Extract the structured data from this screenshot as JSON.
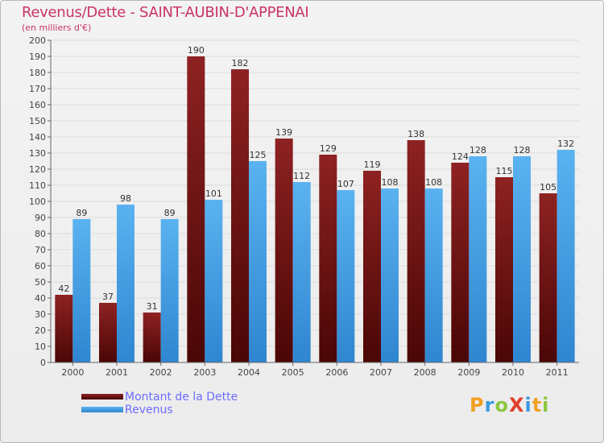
{
  "chart_data": {
    "type": "bar",
    "title": "Revenus/Dette - SAINT-AUBIN-D'APPENAI",
    "subtitle": "(en milliers d'€)",
    "categories": [
      "2000",
      "2001",
      "2002",
      "2003",
      "2004",
      "2005",
      "2006",
      "2007",
      "2008",
      "2009",
      "2010",
      "2011"
    ],
    "series": [
      {
        "name": "Montant de la Dette",
        "color": "#7a1a1a",
        "values": [
          42,
          37,
          31,
          190,
          182,
          139,
          129,
          119,
          138,
          124,
          115,
          105
        ]
      },
      {
        "name": "Revenus",
        "color": "#3a9ae0",
        "values": [
          89,
          98,
          89,
          101,
          125,
          112,
          107,
          108,
          108,
          128,
          128,
          132
        ]
      }
    ],
    "ylim": [
      0,
      200
    ],
    "ytick_step": 10,
    "grid": true,
    "legend_position": "bottom-left"
  },
  "logo": {
    "text": "ProXiti",
    "letters": [
      "P",
      "r",
      "o",
      "X",
      "i",
      "t",
      "i"
    ],
    "colors": [
      "#f2a022",
      "#3a9ae0",
      "#8cc63f",
      "#e2402a",
      "#3a9ae0",
      "#f2a022",
      "#8cc63f"
    ]
  }
}
